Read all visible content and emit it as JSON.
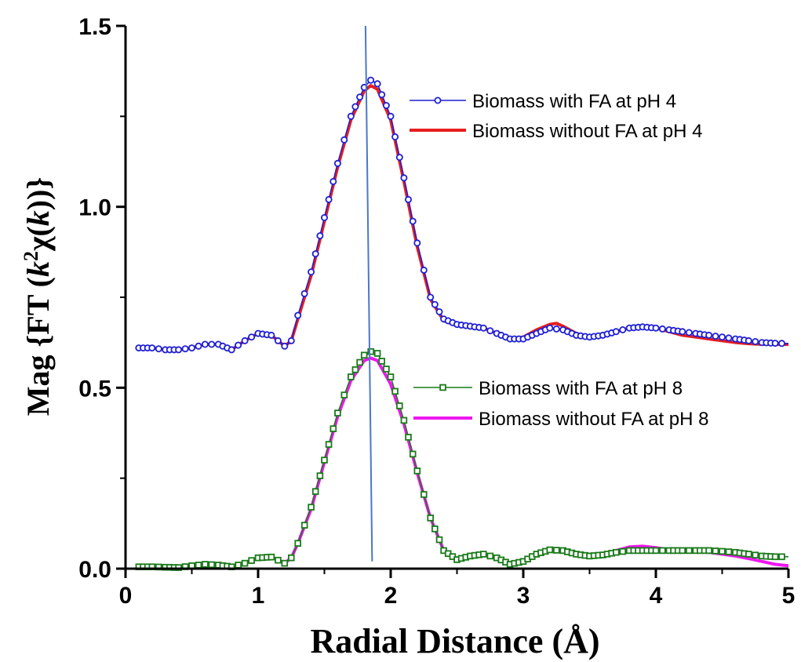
{
  "chart_data": {
    "type": "line",
    "xlabel": "Radial Distance (Å)",
    "ylabel": "Mag {FT (k²χ(k))}",
    "ylabel_parts": {
      "a": "Mag {FT (",
      "k1": "k",
      "sup": "2",
      "chi": "χ(",
      "k2": "k",
      "b": "))}"
    },
    "xlim": [
      0,
      5
    ],
    "ylim": [
      0,
      1.5
    ],
    "xticks": [
      "0",
      "1",
      "2",
      "3",
      "4",
      "5"
    ],
    "yticks": [
      "0.0",
      "0.5",
      "1.0",
      "1.5"
    ],
    "grid": false,
    "legend_position": "upper-right / middle-right",
    "series": [
      {
        "name": "Biomass with FA at pH 4",
        "color": "#1f1fd6",
        "style": "line-open-circle",
        "x": [
          0.1,
          0.2,
          0.3,
          0.4,
          0.5,
          0.6,
          0.7,
          0.8,
          0.9,
          1.0,
          1.1,
          1.2,
          1.25,
          1.3,
          1.4,
          1.5,
          1.6,
          1.7,
          1.8,
          1.85,
          1.9,
          2.0,
          2.1,
          2.2,
          2.3,
          2.4,
          2.5,
          2.6,
          2.7,
          2.8,
          2.9,
          3.0,
          3.1,
          3.2,
          3.3,
          3.4,
          3.5,
          3.6,
          3.7,
          3.8,
          3.9,
          4.0,
          4.1,
          4.2,
          4.3,
          4.4,
          4.5,
          4.6,
          4.7,
          4.8,
          4.9,
          5.0
        ],
        "y": [
          0.61,
          0.61,
          0.605,
          0.605,
          0.61,
          0.62,
          0.62,
          0.605,
          0.63,
          0.65,
          0.645,
          0.615,
          0.63,
          0.7,
          0.82,
          0.97,
          1.12,
          1.25,
          1.33,
          1.35,
          1.34,
          1.25,
          1.08,
          0.9,
          0.75,
          0.69,
          0.675,
          0.67,
          0.665,
          0.65,
          0.635,
          0.635,
          0.65,
          0.665,
          0.66,
          0.645,
          0.64,
          0.645,
          0.655,
          0.665,
          0.668,
          0.665,
          0.66,
          0.655,
          0.65,
          0.645,
          0.64,
          0.635,
          0.63,
          0.625,
          0.623,
          0.622
        ]
      },
      {
        "name": "Biomass without FA at pH 4",
        "color": "#e61e1e",
        "style": "line",
        "x": [
          0.1,
          0.2,
          0.3,
          0.4,
          0.5,
          0.6,
          0.7,
          0.8,
          0.9,
          1.0,
          1.1,
          1.2,
          1.25,
          1.3,
          1.4,
          1.5,
          1.6,
          1.7,
          1.8,
          1.85,
          1.9,
          2.0,
          2.1,
          2.2,
          2.3,
          2.4,
          2.5,
          2.6,
          2.7,
          2.8,
          2.9,
          3.0,
          3.1,
          3.2,
          3.25,
          3.3,
          3.4,
          3.5,
          3.6,
          3.7,
          3.8,
          3.9,
          4.0,
          4.1,
          4.2,
          4.3,
          4.4,
          4.5,
          4.6,
          4.7,
          4.8,
          4.9,
          5.0
        ],
        "y": [
          0.61,
          0.61,
          0.605,
          0.605,
          0.61,
          0.62,
          0.62,
          0.605,
          0.63,
          0.65,
          0.645,
          0.615,
          0.63,
          0.69,
          0.81,
          0.96,
          1.11,
          1.24,
          1.32,
          1.335,
          1.325,
          1.24,
          1.07,
          0.89,
          0.745,
          0.685,
          0.672,
          0.668,
          0.665,
          0.65,
          0.635,
          0.64,
          0.66,
          0.675,
          0.678,
          0.67,
          0.65,
          0.64,
          0.645,
          0.655,
          0.665,
          0.668,
          0.665,
          0.655,
          0.645,
          0.64,
          0.635,
          0.63,
          0.625,
          0.622,
          0.62,
          0.62,
          0.62
        ]
      },
      {
        "name": "Biomass with FA at pH 8",
        "color": "#1a7a1a",
        "style": "line-open-square",
        "x": [
          0.1,
          0.2,
          0.3,
          0.4,
          0.5,
          0.6,
          0.7,
          0.8,
          0.9,
          1.0,
          1.1,
          1.2,
          1.25,
          1.3,
          1.4,
          1.5,
          1.6,
          1.7,
          1.8,
          1.85,
          1.9,
          2.0,
          2.1,
          2.2,
          2.3,
          2.4,
          2.5,
          2.6,
          2.7,
          2.8,
          2.9,
          3.0,
          3.1,
          3.2,
          3.3,
          3.4,
          3.5,
          3.6,
          3.7,
          3.8,
          3.9,
          4.0,
          4.1,
          4.2,
          4.3,
          4.4,
          4.5,
          4.6,
          4.7,
          4.8,
          4.9,
          5.0
        ],
        "y": [
          0.005,
          0.005,
          0.004,
          0.003,
          0.008,
          0.012,
          0.01,
          0.005,
          0.015,
          0.03,
          0.032,
          0.015,
          0.03,
          0.07,
          0.17,
          0.3,
          0.43,
          0.53,
          0.59,
          0.6,
          0.595,
          0.53,
          0.41,
          0.27,
          0.14,
          0.05,
          0.025,
          0.035,
          0.04,
          0.03,
          0.012,
          0.02,
          0.04,
          0.052,
          0.05,
          0.04,
          0.035,
          0.038,
          0.045,
          0.05,
          0.05,
          0.05,
          0.05,
          0.05,
          0.05,
          0.05,
          0.048,
          0.045,
          0.04,
          0.035,
          0.033,
          0.033
        ]
      },
      {
        "name": "Biomass without FA at pH 8",
        "color": "#ee18ee",
        "style": "line",
        "x": [
          0.1,
          0.2,
          0.3,
          0.4,
          0.5,
          0.6,
          0.7,
          0.8,
          0.9,
          1.0,
          1.1,
          1.2,
          1.25,
          1.3,
          1.4,
          1.5,
          1.6,
          1.7,
          1.8,
          1.85,
          1.9,
          2.0,
          2.1,
          2.2,
          2.3,
          2.4,
          2.5,
          2.6,
          2.7,
          2.8,
          2.9,
          3.0,
          3.1,
          3.2,
          3.3,
          3.4,
          3.5,
          3.6,
          3.7,
          3.8,
          3.9,
          4.0,
          4.1,
          4.2,
          4.3,
          4.4,
          4.5,
          4.6,
          4.7,
          4.8,
          4.9,
          5.0
        ],
        "y": [
          0.005,
          0.005,
          0.004,
          0.003,
          0.008,
          0.012,
          0.01,
          0.005,
          0.015,
          0.03,
          0.032,
          0.015,
          0.03,
          0.07,
          0.165,
          0.295,
          0.42,
          0.52,
          0.575,
          0.582,
          0.575,
          0.51,
          0.4,
          0.265,
          0.14,
          0.05,
          0.025,
          0.035,
          0.04,
          0.03,
          0.012,
          0.02,
          0.04,
          0.052,
          0.05,
          0.04,
          0.035,
          0.04,
          0.05,
          0.06,
          0.062,
          0.058,
          0.052,
          0.05,
          0.048,
          0.045,
          0.04,
          0.035,
          0.028,
          0.02,
          0.012,
          0.008
        ]
      }
    ],
    "annotations": [
      {
        "type": "reference-line",
        "color": "#4a78c8",
        "x1": 1.81,
        "y1": 1.5,
        "x2": 1.86,
        "y2": 0.02
      }
    ]
  }
}
